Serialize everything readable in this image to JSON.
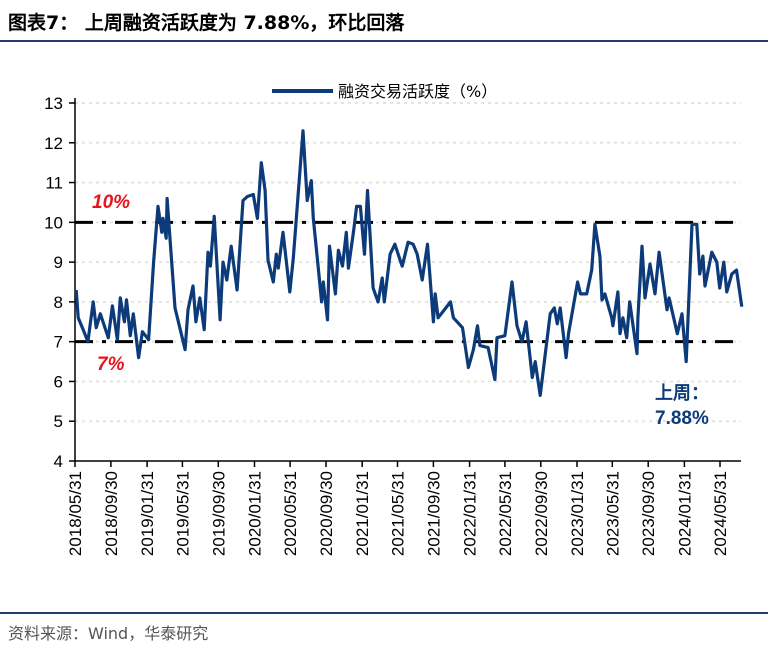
{
  "title": "图表7： 上周融资活跃度为 7.88%，环比回落",
  "source": "资料来源：Wind，华泰研究",
  "chart_data": {
    "type": "line",
    "title": "",
    "xlabel": "",
    "ylabel": "",
    "ylim": [
      4,
      13
    ],
    "yticks": [
      4,
      5,
      6,
      7,
      8,
      9,
      10,
      11,
      12,
      13
    ],
    "grid": true,
    "legend_position": "top-center",
    "xlim": [
      "2018-05-31",
      "2024-08-13"
    ],
    "xtick_labels": [
      "2018/05/31",
      "2018/09/30",
      "2019/01/31",
      "2019/05/31",
      "2019/09/30",
      "2020/01/31",
      "2020/05/31",
      "2020/09/30",
      "2021/01/31",
      "2021/05/31",
      "2021/09/30",
      "2022/01/31",
      "2022/05/31",
      "2022/09/30",
      "2023/01/31",
      "2023/05/31",
      "2023/09/30",
      "2024/01/31",
      "2024/05/31"
    ],
    "series": [
      {
        "name": "融资交易活跃度（%）",
        "color": "#0d3b7a",
        "points": [
          [
            "2018-06-04",
            8.3
          ],
          [
            "2018-06-11",
            7.6
          ],
          [
            "2018-06-28",
            7.3
          ],
          [
            "2018-07-14",
            7.0
          ],
          [
            "2018-08-01",
            8.0
          ],
          [
            "2018-08-11",
            7.35
          ],
          [
            "2018-08-25",
            7.7
          ],
          [
            "2018-09-21",
            7.1
          ],
          [
            "2018-10-05",
            7.9
          ],
          [
            "2018-10-22",
            7.05
          ],
          [
            "2018-11-01",
            8.1
          ],
          [
            "2018-11-15",
            7.5
          ],
          [
            "2018-11-22",
            8.05
          ],
          [
            "2018-12-05",
            7.15
          ],
          [
            "2018-12-15",
            7.7
          ],
          [
            "2019-01-02",
            6.6
          ],
          [
            "2019-01-15",
            7.25
          ],
          [
            "2019-02-05",
            7.05
          ],
          [
            "2019-02-22",
            9.0
          ],
          [
            "2019-03-09",
            10.4
          ],
          [
            "2019-03-22",
            9.75
          ],
          [
            "2019-03-26",
            10.1
          ],
          [
            "2019-04-06",
            9.6
          ],
          [
            "2019-04-09",
            10.6
          ],
          [
            "2019-05-06",
            7.85
          ],
          [
            "2019-06-09",
            6.8
          ],
          [
            "2019-06-19",
            7.8
          ],
          [
            "2019-07-06",
            8.4
          ],
          [
            "2019-07-16",
            7.5
          ],
          [
            "2019-07-29",
            8.1
          ],
          [
            "2019-08-13",
            7.3
          ],
          [
            "2019-08-26",
            9.25
          ],
          [
            "2019-09-03",
            8.9
          ],
          [
            "2019-09-16",
            10.15
          ],
          [
            "2019-10-06",
            7.55
          ],
          [
            "2019-10-16",
            9.0
          ],
          [
            "2019-10-29",
            8.55
          ],
          [
            "2019-11-13",
            9.4
          ],
          [
            "2019-12-03",
            8.3
          ],
          [
            "2019-12-23",
            10.55
          ],
          [
            "2020-01-07",
            10.65
          ],
          [
            "2020-01-27",
            10.7
          ],
          [
            "2020-02-10",
            10.1
          ],
          [
            "2020-02-23",
            11.5
          ],
          [
            "2020-03-07",
            10.8
          ],
          [
            "2020-03-17",
            9.05
          ],
          [
            "2020-04-04",
            8.5
          ],
          [
            "2020-04-14",
            9.2
          ],
          [
            "2020-04-21",
            8.85
          ],
          [
            "2020-05-07",
            9.75
          ],
          [
            "2020-05-30",
            8.25
          ],
          [
            "2020-06-11",
            9.1
          ],
          [
            "2020-07-14",
            12.3
          ],
          [
            "2020-07-28",
            10.55
          ],
          [
            "2020-08-11",
            11.05
          ],
          [
            "2020-08-18",
            10.1
          ],
          [
            "2020-09-01",
            9.05
          ],
          [
            "2020-09-15",
            8.0
          ],
          [
            "2020-09-21",
            8.5
          ],
          [
            "2020-10-05",
            7.55
          ],
          [
            "2020-10-12",
            9.4
          ],
          [
            "2020-11-01",
            8.2
          ],
          [
            "2020-11-11",
            9.3
          ],
          [
            "2020-11-25",
            8.9
          ],
          [
            "2020-12-08",
            9.75
          ],
          [
            "2020-12-15",
            8.85
          ],
          [
            "2021-01-02",
            9.8
          ],
          [
            "2021-01-12",
            10.4
          ],
          [
            "2021-01-25",
            10.4
          ],
          [
            "2021-02-08",
            9.2
          ],
          [
            "2021-02-18",
            10.8
          ],
          [
            "2021-03-09",
            8.35
          ],
          [
            "2021-03-26",
            8.0
          ],
          [
            "2021-04-09",
            8.6
          ],
          [
            "2021-04-16",
            8.0
          ],
          [
            "2021-05-06",
            9.2
          ],
          [
            "2021-05-22",
            9.45
          ],
          [
            "2021-06-09",
            9.05
          ],
          [
            "2021-06-16",
            8.9
          ],
          [
            "2021-07-06",
            9.5
          ],
          [
            "2021-07-23",
            9.45
          ],
          [
            "2021-08-06",
            9.2
          ],
          [
            "2021-08-23",
            8.55
          ],
          [
            "2021-09-10",
            9.45
          ],
          [
            "2021-09-30",
            7.5
          ],
          [
            "2021-10-06",
            8.2
          ],
          [
            "2021-10-16",
            7.6
          ],
          [
            "2021-11-27",
            8.0
          ],
          [
            "2021-12-07",
            7.6
          ],
          [
            "2022-01-07",
            7.35
          ],
          [
            "2022-01-27",
            6.35
          ],
          [
            "2022-02-13",
            6.8
          ],
          [
            "2022-02-27",
            7.4
          ],
          [
            "2022-03-07",
            6.9
          ],
          [
            "2022-04-04",
            6.85
          ],
          [
            "2022-04-27",
            6.05
          ],
          [
            "2022-05-04",
            7.1
          ],
          [
            "2022-05-31",
            7.15
          ],
          [
            "2022-06-24",
            8.5
          ],
          [
            "2022-07-11",
            7.4
          ],
          [
            "2022-07-28",
            7.0
          ],
          [
            "2022-08-11",
            7.5
          ],
          [
            "2022-09-01",
            6.1
          ],
          [
            "2022-09-11",
            6.5
          ],
          [
            "2022-09-28",
            5.65
          ],
          [
            "2022-11-01",
            7.7
          ],
          [
            "2022-11-15",
            7.85
          ],
          [
            "2022-11-25",
            7.45
          ],
          [
            "2022-12-05",
            7.85
          ],
          [
            "2022-12-25",
            6.6
          ],
          [
            "2023-01-02",
            7.2
          ],
          [
            "2023-02-02",
            8.5
          ],
          [
            "2023-02-12",
            8.2
          ],
          [
            "2023-03-05",
            8.2
          ],
          [
            "2023-03-22",
            8.8
          ],
          [
            "2023-04-02",
            9.95
          ],
          [
            "2023-04-19",
            9.15
          ],
          [
            "2023-04-26",
            8.05
          ],
          [
            "2023-05-06",
            8.2
          ],
          [
            "2023-05-29",
            7.6
          ],
          [
            "2023-06-02",
            7.4
          ],
          [
            "2023-06-19",
            8.25
          ],
          [
            "2023-06-26",
            7.2
          ],
          [
            "2023-07-06",
            7.6
          ],
          [
            "2023-07-19",
            7.1
          ],
          [
            "2023-07-29",
            8.0
          ],
          [
            "2023-08-23",
            6.7
          ],
          [
            "2023-08-26",
            7.6
          ],
          [
            "2023-09-09",
            9.4
          ],
          [
            "2023-09-19",
            8.1
          ],
          [
            "2023-10-06",
            8.95
          ],
          [
            "2023-10-23",
            8.2
          ],
          [
            "2023-11-06",
            9.25
          ],
          [
            "2023-12-03",
            7.8
          ],
          [
            "2023-12-10",
            8.1
          ],
          [
            "2024-01-07",
            7.2
          ],
          [
            "2024-01-23",
            7.7
          ],
          [
            "2024-02-06",
            6.5
          ],
          [
            "2024-02-26",
            9.95
          ],
          [
            "2024-03-13",
            9.95
          ],
          [
            "2024-03-23",
            8.7
          ],
          [
            "2024-04-03",
            9.15
          ],
          [
            "2024-04-10",
            8.4
          ],
          [
            "2024-05-03",
            9.25
          ],
          [
            "2024-05-20",
            9.0
          ],
          [
            "2024-05-30",
            8.35
          ],
          [
            "2024-06-13",
            9.0
          ],
          [
            "2024-06-23",
            8.25
          ],
          [
            "2024-07-10",
            8.7
          ],
          [
            "2024-07-26",
            8.8
          ],
          [
            "2024-08-13",
            7.88
          ]
        ]
      }
    ],
    "reference_lines": [
      {
        "value": 10,
        "label": "10%",
        "label_color": "#e8141b",
        "style": "dash-dot",
        "color": "#000000"
      },
      {
        "value": 7,
        "label": "7%",
        "label_color": "#e8141b",
        "style": "dash-dot",
        "color": "#000000"
      }
    ],
    "annotation": {
      "line1": "上周：",
      "line2": "7.88%",
      "color": "#0d3b7a"
    }
  }
}
